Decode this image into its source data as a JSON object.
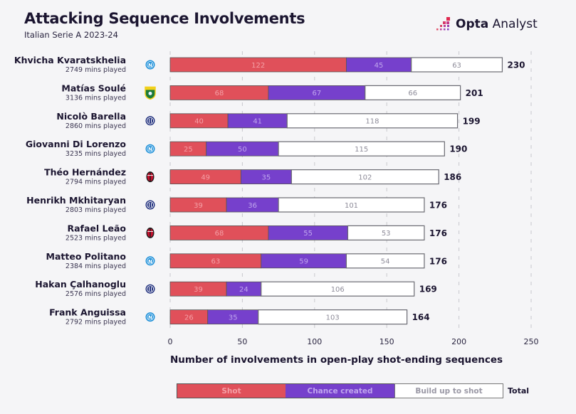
{
  "header": {
    "title": "Attacking Sequence Involvements",
    "subtitle": "Italian Serie A 2023-24",
    "logo_bold": "Opta",
    "logo_light": " Analyst"
  },
  "colors": {
    "shot": "#e0505a",
    "chance": "#7640cc",
    "build": "#ffffff",
    "shot_text": "#f4a0a6",
    "chance_text": "#c0a6ee",
    "build_text": "#8e8c99",
    "napoli": "#1e8fd6",
    "frosinone": "#f2d11c",
    "inter": "#1a2a7a",
    "milan": "#c8102e"
  },
  "chart_data": {
    "type": "bar",
    "orientation": "horizontal",
    "stacked": true,
    "title": "Attacking Sequence Involvements",
    "subtitle": "Italian Serie A 2023-24",
    "xlabel": "Number of involvements in open-play shot-ending sequences",
    "ylabel": "",
    "xlim": [
      0,
      250
    ],
    "xticks": [
      0,
      50,
      100,
      150,
      200,
      250
    ],
    "grid": "vertical dashed",
    "legend": "bottom",
    "legend_entries": [
      "Shot",
      "Chance created",
      "Build up to shot",
      "Total"
    ],
    "categories": [
      {
        "player": "Khvicha Kvaratskhelia",
        "mins": "2749 mins played",
        "club": "napoli"
      },
      {
        "player": "Matías Soulé",
        "mins": "3136 mins played",
        "club": "frosinone"
      },
      {
        "player": "Nicolò Barella",
        "mins": "2860 mins played",
        "club": "inter"
      },
      {
        "player": "Giovanni Di Lorenzo",
        "mins": "3235 mins played",
        "club": "napoli"
      },
      {
        "player": "Théo Hernández",
        "mins": "2794 mins played",
        "club": "milan"
      },
      {
        "player": "Henrikh Mkhitaryan",
        "mins": "2803 mins played",
        "club": "inter"
      },
      {
        "player": "Rafael Leão",
        "mins": "2523 mins played",
        "club": "milan"
      },
      {
        "player": "Matteo Politano",
        "mins": "2384 mins played",
        "club": "napoli"
      },
      {
        "player": "Hakan Çalhanoglu",
        "mins": "2576 mins played",
        "club": "inter"
      },
      {
        "player": "Frank Anguissa",
        "mins": "2792 mins played",
        "club": "napoli"
      }
    ],
    "series": [
      {
        "name": "Shot",
        "values": [
          122,
          68,
          40,
          25,
          49,
          39,
          68,
          63,
          39,
          26
        ]
      },
      {
        "name": "Chance created",
        "values": [
          45,
          67,
          41,
          50,
          35,
          36,
          55,
          59,
          24,
          35
        ]
      },
      {
        "name": "Build up to shot",
        "values": [
          63,
          66,
          118,
          115,
          102,
          101,
          53,
          54,
          106,
          103
        ]
      }
    ],
    "totals": [
      230,
      201,
      199,
      190,
      186,
      176,
      176,
      176,
      169,
      164
    ]
  },
  "legend": {
    "shot": "Shot",
    "chance": "Chance created",
    "build": "Build up to shot",
    "total": "Total"
  }
}
